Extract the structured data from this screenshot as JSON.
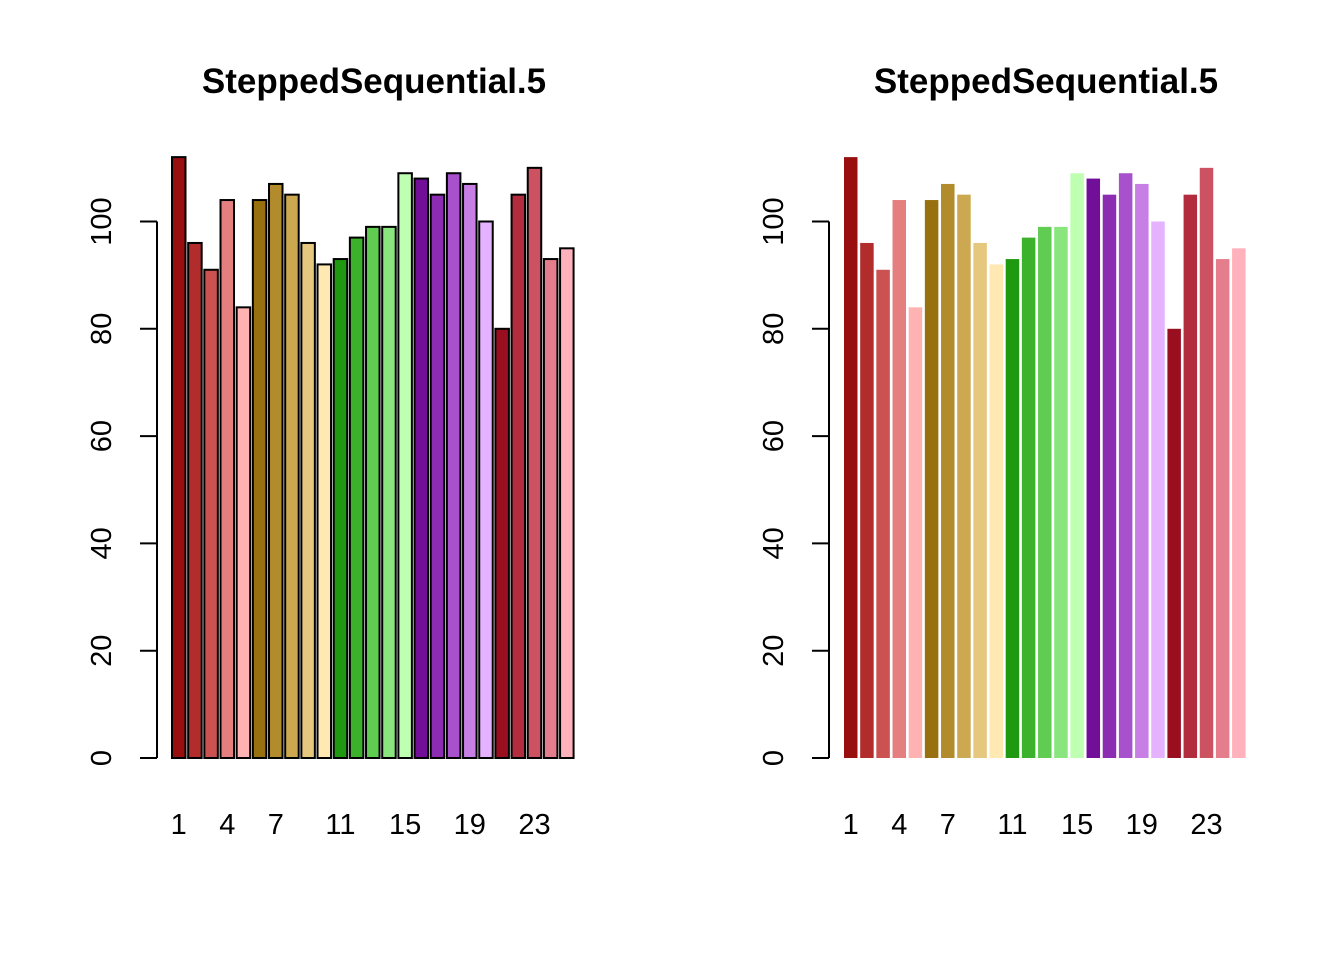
{
  "chart_data": [
    {
      "type": "bar",
      "title": "SteppedSequential.5",
      "xlabel": "",
      "ylabel": "",
      "bar_border": true,
      "categories": [
        "1",
        "2",
        "3",
        "4",
        "5",
        "6",
        "7",
        "8",
        "9",
        "10",
        "11",
        "12",
        "13",
        "14",
        "15",
        "16",
        "17",
        "18",
        "19",
        "20",
        "21",
        "22",
        "23",
        "24",
        "25"
      ],
      "x_tick_labels": [
        "1",
        "4",
        "7",
        "11",
        "15",
        "19",
        "23"
      ],
      "values": [
        112,
        96,
        91,
        104,
        84,
        104,
        107,
        105,
        96,
        92,
        93,
        97,
        99,
        99,
        109,
        108,
        105,
        109,
        107,
        100,
        80,
        105,
        110,
        93,
        95
      ],
      "colors": [
        "#990F0F",
        "#B22C2C",
        "#CC5151",
        "#E57E7E",
        "#FFB2B2",
        "#99700F",
        "#B28B2C",
        "#CCA951",
        "#E5C77E",
        "#FFE8B2",
        "#1F990F",
        "#3CB22C",
        "#60CC51",
        "#8BE57E",
        "#BFFFB2",
        "#710F99",
        "#8C2CB2",
        "#A851CC",
        "#C77EE5",
        "#E5B2FF",
        "#990F20",
        "#B22C3D",
        "#CC5161",
        "#E57E8C",
        "#FFB2BC"
      ],
      "yticks": [
        0,
        20,
        40,
        60,
        80,
        100
      ],
      "ylim": [
        0,
        112
      ]
    },
    {
      "type": "bar",
      "title": "SteppedSequential.5",
      "xlabel": "",
      "ylabel": "",
      "bar_border": false,
      "categories": [
        "1",
        "2",
        "3",
        "4",
        "5",
        "6",
        "7",
        "8",
        "9",
        "10",
        "11",
        "12",
        "13",
        "14",
        "15",
        "16",
        "17",
        "18",
        "19",
        "20",
        "21",
        "22",
        "23",
        "24",
        "25"
      ],
      "x_tick_labels": [
        "1",
        "4",
        "7",
        "11",
        "15",
        "19",
        "23"
      ],
      "values": [
        112,
        96,
        91,
        104,
        84,
        104,
        107,
        105,
        96,
        92,
        93,
        97,
        99,
        99,
        109,
        108,
        105,
        109,
        107,
        100,
        80,
        105,
        110,
        93,
        95
      ],
      "colors": [
        "#990F0F",
        "#B22C2C",
        "#CC5151",
        "#E57E7E",
        "#FFB2B2",
        "#99700F",
        "#B28B2C",
        "#CCA951",
        "#E5C77E",
        "#FFE8B2",
        "#1F990F",
        "#3CB22C",
        "#60CC51",
        "#8BE57E",
        "#BFFFB2",
        "#710F99",
        "#8C2CB2",
        "#A851CC",
        "#C77EE5",
        "#E5B2FF",
        "#990F20",
        "#B22C3D",
        "#CC5161",
        "#E57E8C",
        "#FFB2BC"
      ],
      "yticks": [
        0,
        20,
        40,
        60,
        80,
        100
      ],
      "ylim": [
        0,
        112
      ]
    }
  ]
}
